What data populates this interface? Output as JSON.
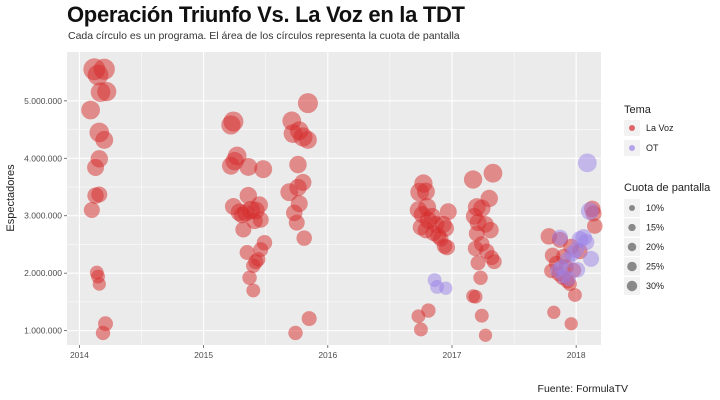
{
  "title": "Operación Triunfo Vs. La Voz en la TDT",
  "subtitle": "Cada círculo es un programa. El área de los círculos representa la cuota de pantalla",
  "caption": "Fuente: FormulaTV",
  "chart_data": {
    "type": "scatter",
    "ylabel": "Espectadores",
    "xlabel": "",
    "xlim": [
      2013.9,
      2018.2
    ],
    "ylim": [
      750000,
      5850000
    ],
    "x_ticks": [
      2014,
      2015,
      2016,
      2017,
      2018
    ],
    "x_tick_labels": [
      "2014",
      "2015",
      "2016",
      "2017",
      "2018"
    ],
    "y_ticks": [
      1000000,
      2000000,
      3000000,
      4000000,
      5000000
    ],
    "y_tick_labels": [
      "1.000.000",
      "2.000.000",
      "3.000.000",
      "4.000.000",
      "5.000.000"
    ],
    "grid": true,
    "colors": {
      "La Voz": "#d62a2a",
      "OT": "#9b82e8",
      "panel": "#ebebeb",
      "grid": "#ffffff"
    },
    "legend_color": {
      "title": "Tema",
      "entries": [
        {
          "label": "La Voz"
        },
        {
          "label": "OT"
        }
      ]
    },
    "legend_size": {
      "title": "Cuota de pantalla",
      "entries": [
        {
          "label": "10%",
          "share": 10
        },
        {
          "label": "15%",
          "share": 15
        },
        {
          "label": "20%",
          "share": 20
        },
        {
          "label": "25%",
          "share": 25
        },
        {
          "label": "30%",
          "share": 30
        }
      ]
    },
    "series": [
      {
        "name": "La Voz",
        "points": [
          [
            2014.12,
            5550000,
            30
          ],
          [
            2014.15,
            5450000,
            27
          ],
          [
            2014.2,
            5550000,
            28
          ],
          [
            2014.17,
            5150000,
            24
          ],
          [
            2014.22,
            5160000,
            23
          ],
          [
            2014.09,
            4840000,
            22
          ],
          [
            2014.16,
            4450000,
            24
          ],
          [
            2014.2,
            4320000,
            20
          ],
          [
            2014.16,
            3990000,
            19
          ],
          [
            2014.13,
            3840000,
            18
          ],
          [
            2014.13,
            3350000,
            17
          ],
          [
            2014.16,
            3370000,
            16
          ],
          [
            2014.1,
            3100000,
            16
          ],
          [
            2014.14,
            2010000,
            12
          ],
          [
            2014.15,
            1940000,
            12
          ],
          [
            2014.16,
            1810000,
            11
          ],
          [
            2014.21,
            1120000,
            14
          ],
          [
            2014.19,
            960000,
            13
          ],
          [
            2015.24,
            4640000,
            25
          ],
          [
            2015.22,
            4580000,
            23
          ],
          [
            2015.27,
            4040000,
            22
          ],
          [
            2015.25,
            3950000,
            21
          ],
          [
            2015.22,
            3870000,
            20
          ],
          [
            2015.36,
            3850000,
            20
          ],
          [
            2015.48,
            3810000,
            20
          ],
          [
            2015.36,
            3350000,
            19
          ],
          [
            2015.24,
            3160000,
            18
          ],
          [
            2015.29,
            3060000,
            20
          ],
          [
            2015.34,
            3050000,
            19
          ],
          [
            2015.31,
            3010000,
            17
          ],
          [
            2015.38,
            3100000,
            21
          ],
          [
            2015.42,
            3090000,
            20
          ],
          [
            2015.45,
            3190000,
            18
          ],
          [
            2015.32,
            2760000,
            16
          ],
          [
            2015.41,
            2910000,
            17
          ],
          [
            2015.46,
            2930000,
            16
          ],
          [
            2015.49,
            2530000,
            15
          ],
          [
            2015.46,
            2410000,
            14
          ],
          [
            2015.35,
            2360000,
            14
          ],
          [
            2015.42,
            2200000,
            14
          ],
          [
            2015.4,
            2130000,
            13
          ],
          [
            2015.44,
            2240000,
            13
          ],
          [
            2015.37,
            1920000,
            13
          ],
          [
            2015.4,
            1700000,
            12
          ],
          [
            2015.84,
            4960000,
            25
          ],
          [
            2015.71,
            4650000,
            22
          ],
          [
            2015.72,
            4430000,
            22
          ],
          [
            2015.77,
            4480000,
            22
          ],
          [
            2015.8,
            4370000,
            23
          ],
          [
            2015.84,
            4320000,
            20
          ],
          [
            2015.76,
            3890000,
            19
          ],
          [
            2015.8,
            3580000,
            18
          ],
          [
            2015.76,
            3490000,
            19
          ],
          [
            2015.69,
            3410000,
            20
          ],
          [
            2015.77,
            3210000,
            18
          ],
          [
            2015.73,
            3050000,
            17
          ],
          [
            2015.75,
            2880000,
            16
          ],
          [
            2015.81,
            2610000,
            15
          ],
          [
            2015.85,
            1210000,
            14
          ],
          [
            2015.74,
            960000,
            13
          ],
          [
            2016.74,
            3410000,
            22
          ],
          [
            2016.77,
            3560000,
            21
          ],
          [
            2016.79,
            3420000,
            20
          ],
          [
            2016.8,
            3150000,
            20
          ],
          [
            2016.73,
            3100000,
            19
          ],
          [
            2016.76,
            3020000,
            18
          ],
          [
            2016.81,
            2920000,
            19
          ],
          [
            2016.84,
            2990000,
            18
          ],
          [
            2016.87,
            2850000,
            18
          ],
          [
            2016.75,
            2800000,
            17
          ],
          [
            2016.79,
            2750000,
            17
          ],
          [
            2016.85,
            2700000,
            16
          ],
          [
            2016.89,
            2650000,
            16
          ],
          [
            2016.93,
            2850000,
            18
          ],
          [
            2016.95,
            2780000,
            17
          ],
          [
            2016.97,
            3070000,
            18
          ],
          [
            2016.91,
            2600000,
            15
          ],
          [
            2016.94,
            2470000,
            15
          ],
          [
            2016.96,
            2450000,
            16
          ],
          [
            2016.81,
            1350000,
            13
          ],
          [
            2016.73,
            1250000,
            12
          ],
          [
            2016.75,
            1020000,
            12
          ],
          [
            2017.17,
            3630000,
            21
          ],
          [
            2017.33,
            3740000,
            22
          ],
          [
            2017.2,
            3150000,
            20
          ],
          [
            2017.24,
            3130000,
            19
          ],
          [
            2017.3,
            3300000,
            19
          ],
          [
            2017.18,
            2990000,
            18
          ],
          [
            2017.21,
            2880000,
            18
          ],
          [
            2017.27,
            2850000,
            17
          ],
          [
            2017.31,
            2750000,
            17
          ],
          [
            2017.2,
            2690000,
            16
          ],
          [
            2017.24,
            2510000,
            15
          ],
          [
            2017.19,
            2430000,
            15
          ],
          [
            2017.28,
            2380000,
            15
          ],
          [
            2017.32,
            2270000,
            14
          ],
          [
            2017.34,
            2200000,
            14
          ],
          [
            2017.21,
            2180000,
            14
          ],
          [
            2017.23,
            1920000,
            13
          ],
          [
            2017.19,
            1590000,
            12
          ],
          [
            2017.17,
            1600000,
            12
          ],
          [
            2017.24,
            1260000,
            12
          ],
          [
            2017.27,
            920000,
            11
          ],
          [
            2017.78,
            2640000,
            17
          ],
          [
            2017.87,
            2580000,
            16
          ],
          [
            2017.96,
            2460000,
            16
          ],
          [
            2018.03,
            2380000,
            15
          ],
          [
            2017.81,
            2310000,
            15
          ],
          [
            2017.9,
            2290000,
            15
          ],
          [
            2017.84,
            2170000,
            14
          ],
          [
            2017.92,
            2110000,
            14
          ],
          [
            2017.98,
            2050000,
            14
          ],
          [
            2017.8,
            2040000,
            13
          ],
          [
            2017.86,
            1980000,
            13
          ],
          [
            2017.89,
            1920000,
            13
          ],
          [
            2017.93,
            1860000,
            13
          ],
          [
            2017.95,
            1810000,
            12
          ],
          [
            2017.99,
            1620000,
            12
          ],
          [
            2017.82,
            1320000,
            11
          ],
          [
            2017.96,
            1120000,
            11
          ],
          [
            2018.13,
            3120000,
            17
          ],
          [
            2018.14,
            3040000,
            16
          ],
          [
            2018.15,
            2820000,
            15
          ]
        ]
      },
      {
        "name": "OT",
        "points": [
          [
            2016.86,
            1880000,
            12
          ],
          [
            2016.88,
            1760000,
            12
          ],
          [
            2016.95,
            1740000,
            11
          ],
          [
            2018.09,
            3920000,
            22
          ],
          [
            2018.11,
            3080000,
            20
          ],
          [
            2018.06,
            2620000,
            18
          ],
          [
            2018.03,
            2590000,
            17
          ],
          [
            2018.08,
            2540000,
            17
          ],
          [
            2018.0,
            2400000,
            16
          ],
          [
            2017.97,
            2340000,
            15
          ],
          [
            2018.12,
            2250000,
            16
          ],
          [
            2017.93,
            2230000,
            15
          ],
          [
            2017.88,
            2100000,
            14
          ],
          [
            2017.85,
            2050000,
            14
          ],
          [
            2017.9,
            1950000,
            14
          ],
          [
            2017.94,
            1900000,
            13
          ],
          [
            2018.01,
            2060000,
            15
          ],
          [
            2017.87,
            2620000,
            16
          ]
        ]
      }
    ]
  }
}
